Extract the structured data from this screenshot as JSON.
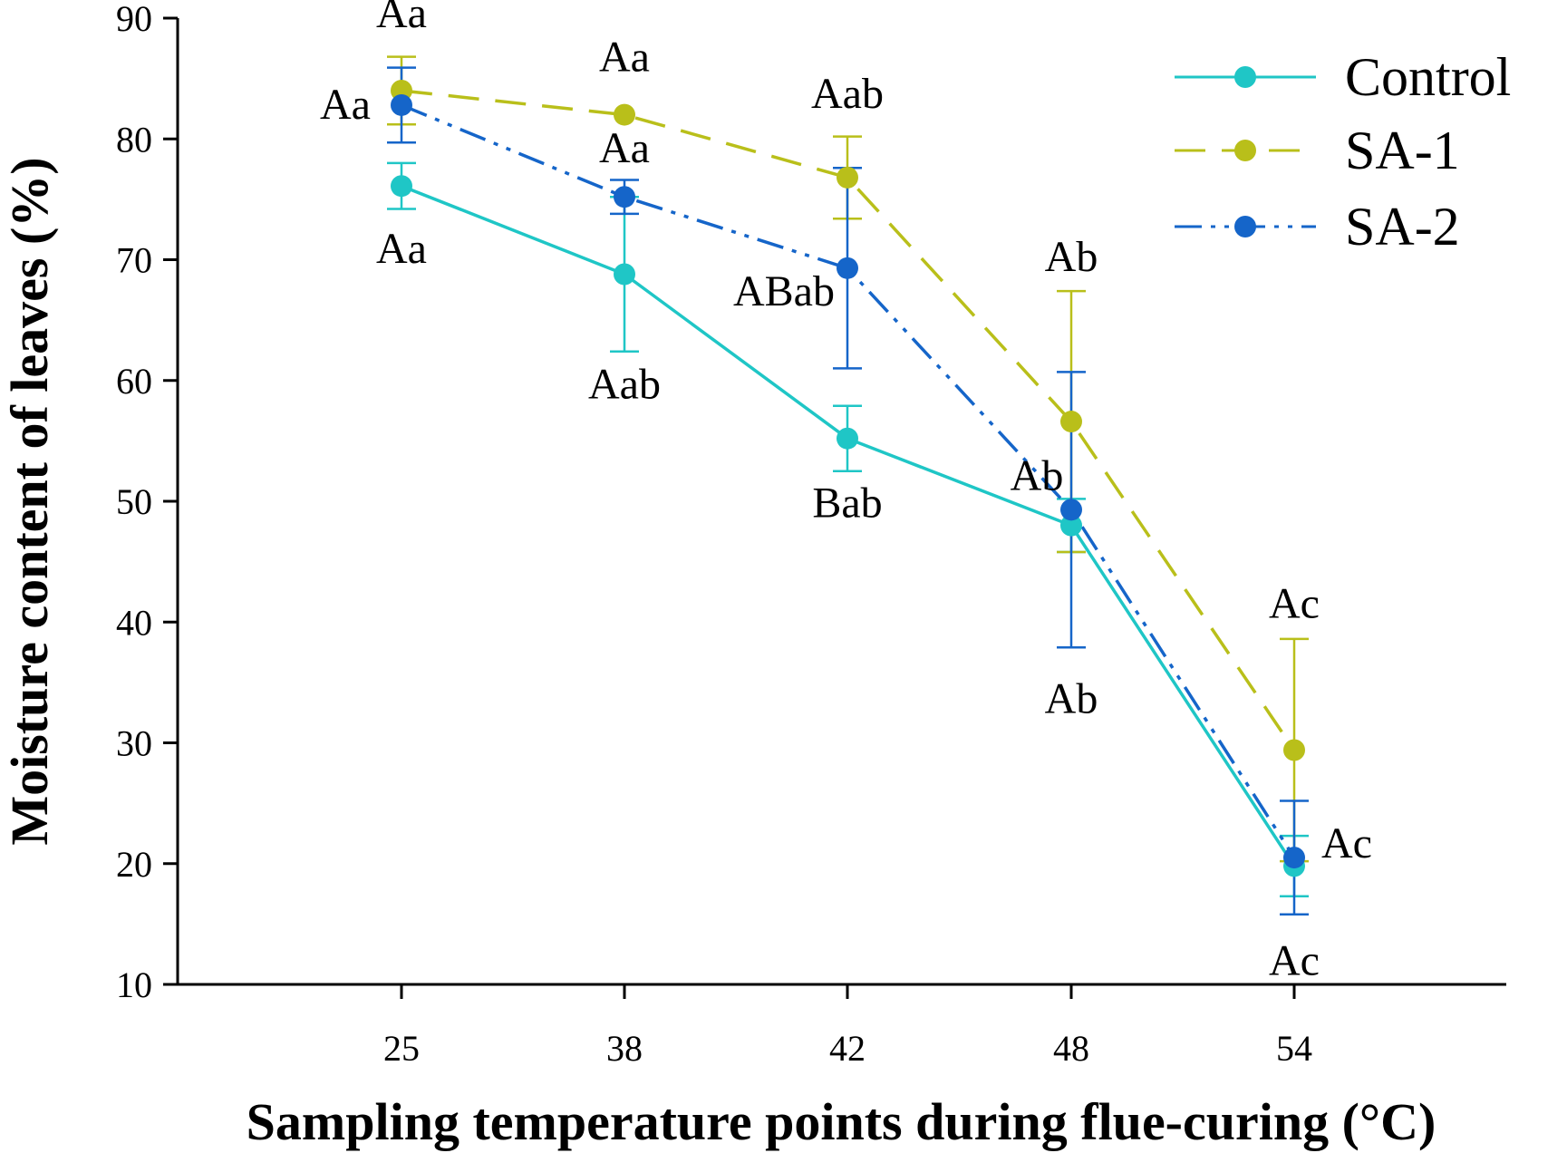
{
  "chart_data": {
    "type": "line",
    "title": "",
    "xlabel": "Sampling temperature points during flue-curing (°C)",
    "ylabel": "Moisture content of leaves (%)",
    "categories": [
      "25",
      "38",
      "42",
      "48",
      "54"
    ],
    "ylim": [
      10,
      90
    ],
    "yticks": [
      "10",
      "20",
      "30",
      "40",
      "50",
      "60",
      "70",
      "80",
      "90"
    ],
    "grid": false,
    "legend_position": "top-right",
    "series": [
      {
        "name": "Control",
        "color": "#1fc6c6",
        "dash": "solid",
        "values": [
          76.1,
          68.8,
          55.2,
          48.0,
          19.8
        ],
        "errors": [
          1.9,
          6.4,
          2.7,
          2.2,
          2.5
        ],
        "labels": [
          "Aa",
          "Aab",
          "Bab",
          "Ab",
          "Ac"
        ]
      },
      {
        "name": "SA-1",
        "color": "#b9bf1a",
        "dash": "dashed",
        "values": [
          84.0,
          82.0,
          76.8,
          56.6,
          29.4
        ],
        "errors": [
          2.8,
          0.0,
          3.4,
          10.8,
          9.2
        ],
        "labels": [
          "Aa",
          "Aa",
          "Aab",
          "Ab",
          "Ac"
        ]
      },
      {
        "name": "SA-2",
        "color": "#1565c9",
        "dash": "dash-dot-dot",
        "values": [
          82.8,
          75.2,
          69.3,
          49.3,
          20.5
        ],
        "errors": [
          3.1,
          1.4,
          8.3,
          11.4,
          4.7
        ],
        "labels": [
          "Aa",
          "Aa",
          "ABab",
          "Ab",
          "Ac"
        ]
      }
    ]
  }
}
